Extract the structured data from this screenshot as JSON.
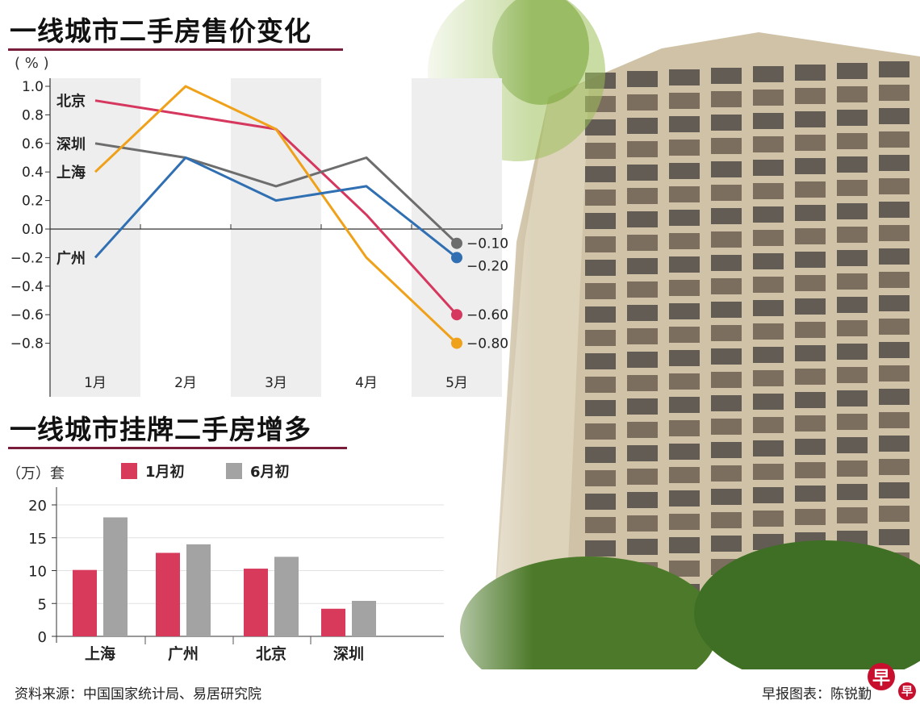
{
  "chart_data": [
    {
      "type": "line",
      "title": "一线城市二手房售价变化",
      "ylabel": "（%）",
      "categories": [
        "1月",
        "2月",
        "3月",
        "4月",
        "5月"
      ],
      "ylim": [
        -0.8,
        1.0
      ],
      "yticks": [
        "1.0",
        "0.8",
        "0.6",
        "0.4",
        "0.2",
        "0.0",
        "-0.2",
        "-0.4",
        "-0.6",
        "-0.8"
      ],
      "grid": false,
      "series": [
        {
          "name": "北京",
          "color": "#d6375e",
          "values": [
            0.9,
            0.8,
            0.7,
            0.1,
            -0.6
          ],
          "end_label": "-0.60"
        },
        {
          "name": "深圳",
          "color": "#6d6d6d",
          "values": [
            0.6,
            0.5,
            0.3,
            0.5,
            -0.1
          ],
          "end_label": "-0.10"
        },
        {
          "name": "上海",
          "color": "#f0a11a",
          "values": [
            0.4,
            1.0,
            0.7,
            -0.2,
            -0.8
          ],
          "end_label": "-0.80"
        },
        {
          "name": "广州",
          "color": "#2f6fb2",
          "values": [
            -0.2,
            0.5,
            0.2,
            0.3,
            -0.2
          ],
          "end_label": "-0.20"
        }
      ]
    },
    {
      "type": "bar",
      "title": "一线城市挂牌二手房增多",
      "ylabel": "（万）套",
      "categories": [
        "上海",
        "广州",
        "北京",
        "深圳"
      ],
      "ylim": [
        0,
        20
      ],
      "yticks": [
        "20",
        "15",
        "10",
        "5",
        "0"
      ],
      "grid": true,
      "legend": "top",
      "series": [
        {
          "name": "1月初",
          "color": "#d83a5c",
          "values": [
            10.1,
            12.7,
            10.3,
            4.2
          ]
        },
        {
          "name": "6月初",
          "color": "#a3a3a3",
          "values": [
            18.1,
            14.0,
            12.1,
            5.4
          ]
        }
      ]
    }
  ],
  "footer": {
    "source": "资料来源：中国国家统计局、易居研究院",
    "credit": "早报图表：陈锐勤",
    "logo_text": "早"
  },
  "colors": {
    "title_rule": "#7a1d3a"
  }
}
